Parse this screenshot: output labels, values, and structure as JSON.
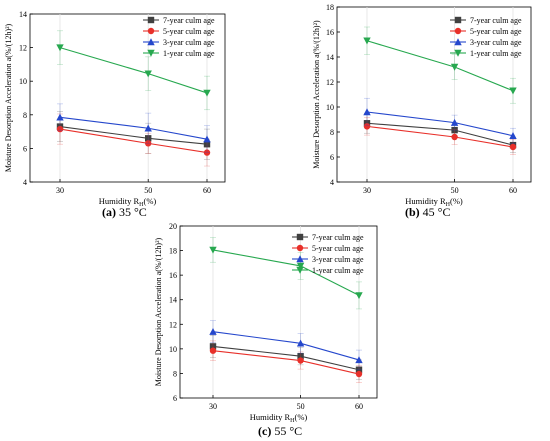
{
  "chart_data": [
    {
      "type": "line",
      "panel": "(a)",
      "caption": "35 °C",
      "xlabel": "Humidity R",
      "xlabel_sub": "H",
      "xlabel_suffix": "(%)",
      "ylabel": "Moisture Desorption Acceleration a(%/(12h)²)",
      "categories": [
        "30",
        "50",
        "60"
      ],
      "ylim": [
        4,
        14
      ],
      "yticks": [
        4,
        6,
        8,
        10,
        12,
        14
      ],
      "legend": "top-right",
      "grid": true,
      "series": [
        {
          "name": "7-year culm age",
          "color": "#404040",
          "marker": "square",
          "values": [
            7.3,
            6.6,
            6.25
          ],
          "err": [
            0.9,
            0.9,
            0.9
          ]
        },
        {
          "name": "5-year culm age",
          "color": "#e8302a",
          "marker": "circle",
          "values": [
            7.15,
            6.3,
            5.75
          ],
          "err": [
            0.9,
            0.6,
            0.8
          ]
        },
        {
          "name": "3-year culm age",
          "color": "#2547cc",
          "marker": "triangle-up",
          "values": [
            7.85,
            7.2,
            6.55
          ],
          "err": [
            0.8,
            0.9,
            0.8
          ]
        },
        {
          "name": "1-year culm age",
          "color": "#27a84f",
          "marker": "triangle-down",
          "values": [
            12.0,
            10.45,
            9.3
          ],
          "err": [
            1.0,
            1.0,
            1.0
          ]
        }
      ]
    },
    {
      "type": "line",
      "panel": "(b)",
      "caption": "45 °C",
      "xlabel": "Humidity R",
      "xlabel_sub": "H",
      "xlabel_suffix": "(%)",
      "ylabel": "Moisture Desorption Acceleration a(%/(12h)²)",
      "categories": [
        "30",
        "50",
        "60"
      ],
      "ylim": [
        4,
        18
      ],
      "yticks": [
        4,
        6,
        8,
        10,
        12,
        14,
        16,
        18
      ],
      "legend": "top-right",
      "grid": true,
      "series": [
        {
          "name": "7-year culm age",
          "color": "#404040",
          "marker": "square",
          "values": [
            8.7,
            8.15,
            6.95
          ],
          "err": [
            0.8,
            0.6,
            0.6
          ]
        },
        {
          "name": "5-year culm age",
          "color": "#e8302a",
          "marker": "circle",
          "values": [
            8.45,
            7.6,
            6.8
          ],
          "err": [
            0.7,
            0.6,
            0.6
          ]
        },
        {
          "name": "3-year culm age",
          "color": "#2547cc",
          "marker": "triangle-up",
          "values": [
            9.6,
            8.75,
            7.7
          ],
          "err": [
            1.1,
            0.6,
            0.6
          ]
        },
        {
          "name": "1-year culm age",
          "color": "#27a84f",
          "marker": "triangle-down",
          "values": [
            15.3,
            13.2,
            11.3
          ],
          "err": [
            1.1,
            1.0,
            1.0
          ]
        }
      ]
    },
    {
      "type": "line",
      "panel": "(c)",
      "caption": "55 °C",
      "xlabel": "Humidity R",
      "xlabel_sub": "H",
      "xlabel_suffix": "(%)",
      "ylabel": "Moisture Desorption Acceleration a(%/(12h)²)",
      "categories": [
        "30",
        "50",
        "60"
      ],
      "ylim": [
        6,
        20
      ],
      "yticks": [
        6,
        8,
        10,
        12,
        14,
        16,
        18,
        20
      ],
      "legend": "top-right",
      "grid": true,
      "series": [
        {
          "name": "7-year culm age",
          "color": "#404040",
          "marker": "square",
          "values": [
            10.2,
            9.4,
            8.3
          ],
          "err": [
            0.9,
            0.7,
            0.8
          ]
        },
        {
          "name": "5-year culm age",
          "color": "#e8302a",
          "marker": "circle",
          "values": [
            9.85,
            9.05,
            7.95
          ],
          "err": [
            0.8,
            0.7,
            0.7
          ]
        },
        {
          "name": "3-year culm age",
          "color": "#2547cc",
          "marker": "triangle-up",
          "values": [
            11.4,
            10.45,
            9.1
          ],
          "err": [
            0.9,
            0.8,
            0.8
          ]
        },
        {
          "name": "1-year culm age",
          "color": "#27a84f",
          "marker": "triangle-down",
          "values": [
            18.05,
            16.75,
            14.35
          ],
          "err": [
            1.0,
            1.1,
            1.1
          ]
        }
      ]
    }
  ]
}
